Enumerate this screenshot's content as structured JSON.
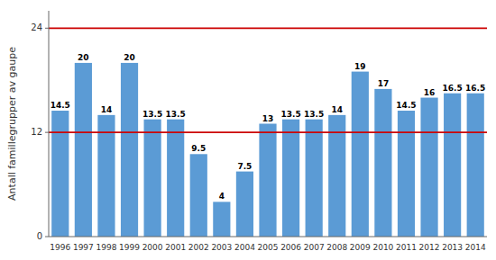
{
  "chart_data": {
    "type": "bar",
    "categories": [
      "1996",
      "1997",
      "1998",
      "1999",
      "2000",
      "2001",
      "2002",
      "2003",
      "2004",
      "2005",
      "2006",
      "2007",
      "2008",
      "2009",
      "2010",
      "2011",
      "2012",
      "2013",
      "2014"
    ],
    "values": [
      14.5,
      20,
      14,
      20,
      13.5,
      13.5,
      9.5,
      4,
      7.5,
      13,
      13.5,
      13.5,
      14,
      19,
      17,
      14.5,
      16,
      16.5,
      16.5
    ],
    "color": "#5b9bd5",
    "ylabel": "Antall famillegrupper av gaupe",
    "ylim": [
      0,
      26
    ],
    "yticks": [
      0,
      12,
      24
    ],
    "hlines": [
      {
        "value": 24,
        "color": "#cc0000"
      },
      {
        "value": 12,
        "color": "#cc0000"
      }
    ],
    "data_labels": true,
    "grid": false
  }
}
